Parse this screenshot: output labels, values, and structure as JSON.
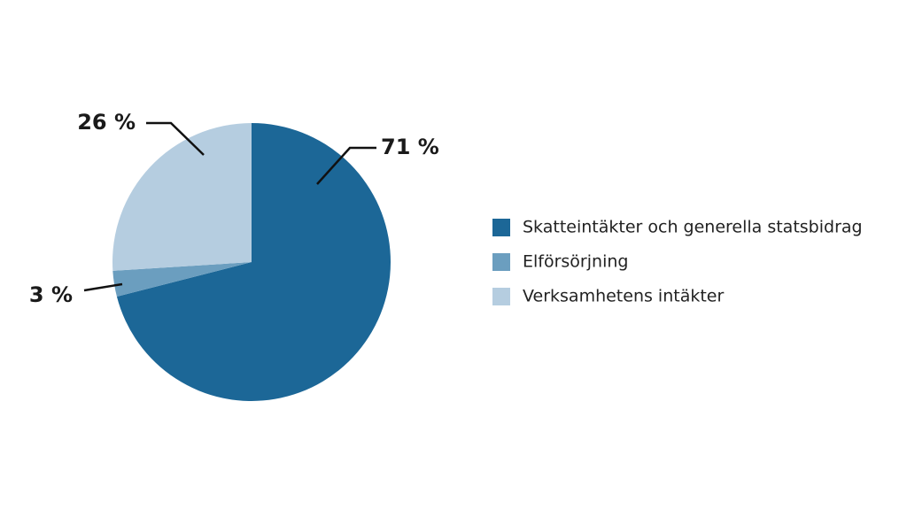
{
  "chart_data": {
    "type": "pie",
    "categories": [
      "Skatteintäkter och generella statsbidrag",
      "Elförsörjning",
      "Verksamhetens intäkter"
    ],
    "values": [
      71,
      3,
      26
    ],
    "value_labels": [
      "71 %",
      "3 %",
      "26 %"
    ],
    "colors": [
      "#1c6797",
      "#6b9ebf",
      "#b5cde0"
    ],
    "legend": "right"
  }
}
